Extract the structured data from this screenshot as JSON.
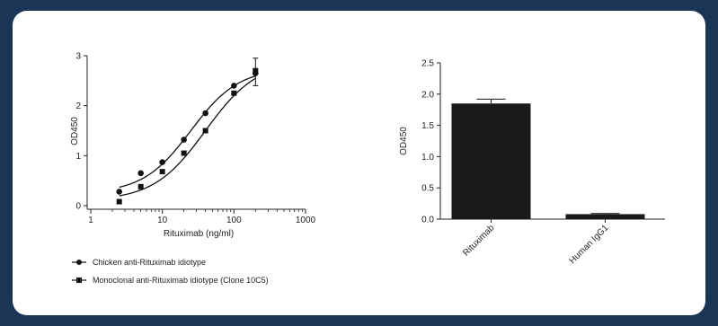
{
  "chart_data": [
    {
      "type": "scatter",
      "xlabel": "Rituximab (ng/ml)",
      "ylabel": "OD450",
      "xscale": "log",
      "xlim": [
        1,
        1000
      ],
      "ylim": [
        0,
        3
      ],
      "xticks": [
        1,
        10,
        100,
        1000
      ],
      "yticks": [
        0,
        1,
        2,
        3
      ],
      "legend_position": "bottom",
      "series": [
        {
          "name": "Chicken anti-Rituximab idiotype",
          "marker": "circle",
          "x": [
            2.5,
            5,
            10,
            20,
            40,
            100,
            200
          ],
          "y": [
            0.28,
            0.65,
            0.87,
            1.32,
            1.85,
            2.4,
            2.65
          ],
          "fit": {
            "bottom": 0.25,
            "top": 2.75,
            "ec50": 25,
            "hill": 1.3
          }
        },
        {
          "name": "Monoclonal anti-Rituximab idiotype (Clone 10C5)",
          "marker": "square",
          "x": [
            2.5,
            5,
            10,
            20,
            40,
            100,
            200
          ],
          "y": [
            0.08,
            0.38,
            0.68,
            1.05,
            1.5,
            2.25,
            2.7
          ],
          "fit": {
            "bottom": 0.1,
            "top": 2.9,
            "ec50": 40,
            "hill": 1.2
          }
        }
      ]
    },
    {
      "type": "bar",
      "ylabel": "OD450",
      "ylim": [
        0,
        2.5
      ],
      "yticks": [
        "0.0",
        "0.5",
        "1.0",
        "1.5",
        "2.0",
        "2.5"
      ],
      "categories": [
        "Rituximab",
        "Human IgG1"
      ],
      "values": [
        1.85,
        0.08
      ],
      "errors": [
        0.07,
        0.01
      ],
      "bar_color": "#1a1a1a"
    }
  ]
}
